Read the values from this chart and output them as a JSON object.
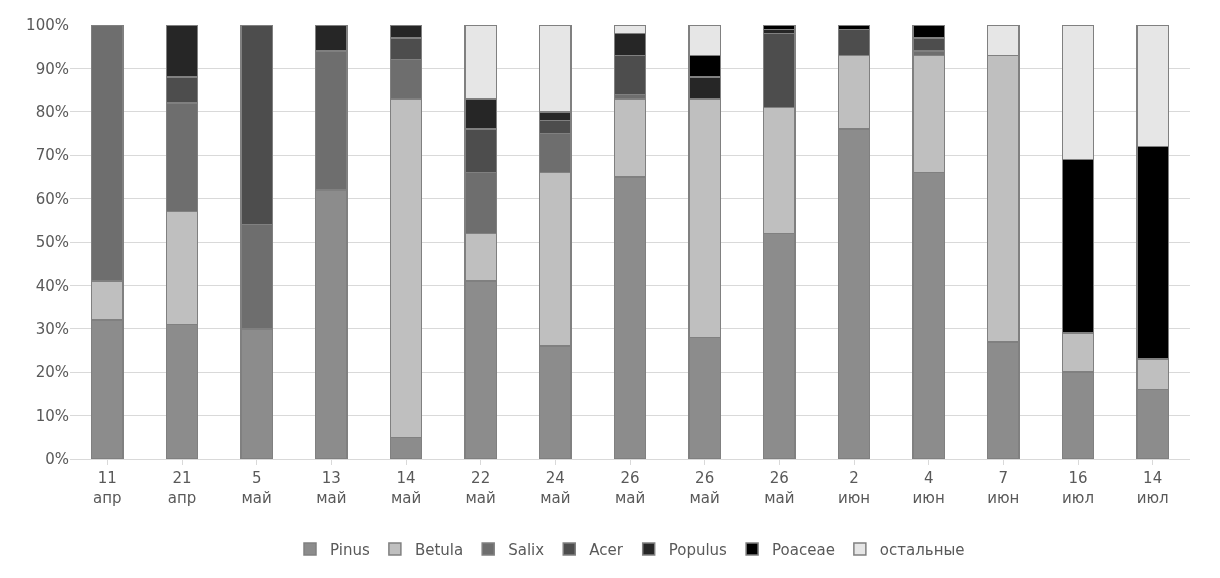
{
  "chart_data": {
    "type": "bar",
    "stacked": true,
    "categories": [
      "11\nапр",
      "21\nапр",
      "5\nмай",
      "13\nмай",
      "14\nмай",
      "22\nмай",
      "24\nмай",
      "26\nмай",
      "26\nмай",
      "26\nмай",
      "2\nиюн",
      "4\nиюн",
      "7\nиюн",
      "16\nиюл",
      "14\nиюл"
    ],
    "series": [
      {
        "name": "Pinus",
        "color": "#8c8c8c",
        "values": [
          32,
          31,
          30,
          62,
          5,
          41,
          26,
          65,
          28,
          52,
          76,
          66,
          27,
          20,
          16
        ]
      },
      {
        "name": "Betula",
        "color": "#bfbfbf",
        "values": [
          9,
          26,
          null,
          null,
          78,
          11,
          40,
          18,
          55,
          29,
          17,
          27,
          66,
          9,
          7
        ]
      },
      {
        "name": "Salix",
        "color": "#6e6e6e",
        "values": [
          59,
          25,
          24,
          32,
          9,
          14,
          9,
          1,
          null,
          null,
          null,
          1,
          null,
          null,
          null
        ]
      },
      {
        "name": "Acer",
        "color": "#4d4d4d",
        "values": [
          null,
          6,
          46,
          null,
          5,
          10,
          3,
          9,
          null,
          17,
          6,
          3,
          null,
          null,
          null
        ]
      },
      {
        "name": "Populus",
        "color": "#262626",
        "values": [
          null,
          12,
          null,
          6,
          3,
          7,
          2,
          5,
          5,
          1,
          null,
          null,
          null,
          null,
          null
        ]
      },
      {
        "name": "Poaceae",
        "color": "#000000",
        "values": [
          null,
          null,
          null,
          null,
          null,
          null,
          null,
          null,
          5,
          1,
          1,
          3,
          null,
          40,
          49
        ]
      },
      {
        "name": "остальные",
        "color": "#e6e6e6",
        "values": [
          null,
          null,
          null,
          null,
          null,
          17,
          20,
          2,
          7,
          null,
          null,
          null,
          7,
          31,
          28
        ]
      }
    ],
    "ylim": [
      0,
      100
    ],
    "yticks": [
      {
        "value": 0,
        "label": "0%"
      },
      {
        "value": 10,
        "label": "10%"
      },
      {
        "value": 20,
        "label": "20%"
      },
      {
        "value": 30,
        "label": "30%"
      },
      {
        "value": 40,
        "label": "40%"
      },
      {
        "value": 50,
        "label": "50%"
      },
      {
        "value": 60,
        "label": "60%"
      },
      {
        "value": 70,
        "label": "70%"
      },
      {
        "value": 80,
        "label": "80%"
      },
      {
        "value": 90,
        "label": "90%"
      },
      {
        "value": 100,
        "label": "100%"
      }
    ],
    "grid": "y",
    "legend": "bottom"
  }
}
